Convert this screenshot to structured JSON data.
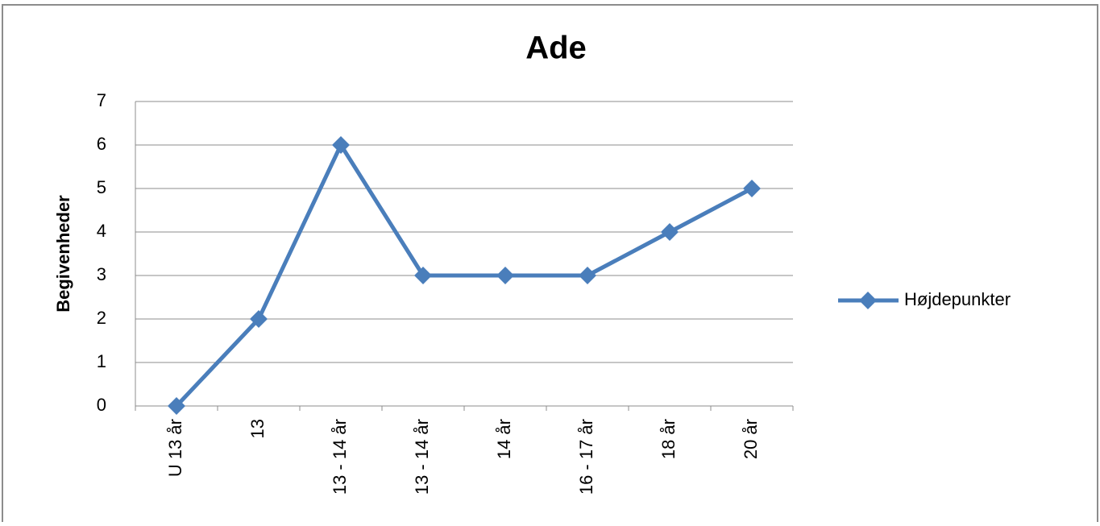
{
  "chart_data": {
    "type": "line",
    "title": "Ade",
    "y_label": "Begivenheder",
    "categories": [
      "U 13 år",
      "13",
      "13 - 14 år",
      "13 - 14 år",
      "14 år",
      "16 - 17 år",
      "18 år",
      "20 år"
    ],
    "series": [
      {
        "name": "Højdepunkter",
        "color": "#4a7ebb",
        "values": [
          0,
          2,
          6,
          3,
          3,
          3,
          4,
          5
        ]
      }
    ],
    "ylim": [
      0,
      7
    ],
    "yticks": [
      0,
      1,
      2,
      3,
      4,
      5,
      6,
      7
    ],
    "grid": true,
    "legend": "right"
  }
}
